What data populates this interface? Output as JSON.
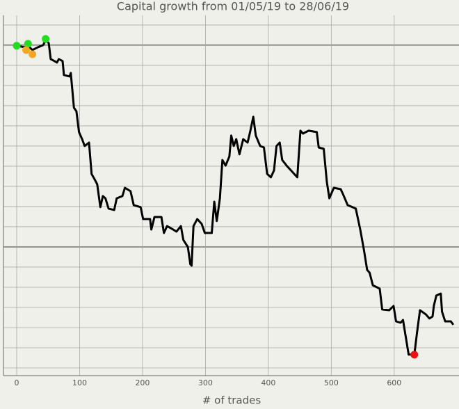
{
  "chart_data": {
    "type": "line",
    "title": "Capital growth from 01/05/19 to 28/06/19",
    "x_label": "# of trades",
    "x": [
      0,
      12,
      18,
      25,
      34,
      42,
      46,
      51,
      54,
      60,
      64,
      67,
      73,
      75,
      84,
      86,
      91,
      95,
      99,
      104,
      108,
      115,
      119,
      124,
      128,
      133,
      137,
      141,
      146,
      155,
      159,
      168,
      172,
      181,
      186,
      197,
      201,
      212,
      214,
      219,
      230,
      234,
      239,
      245,
      254,
      261,
      265,
      272,
      276,
      278,
      281,
      287,
      294,
      299,
      310,
      314,
      318,
      323,
      327,
      332,
      338,
      341,
      345,
      349,
      354,
      360,
      367,
      371,
      376,
      380,
      387,
      393,
      398,
      404,
      409,
      413,
      418,
      422,
      429,
      446,
      451,
      455,
      464,
      477,
      480,
      488,
      493,
      497,
      504,
      515,
      519,
      526,
      539,
      546,
      552,
      557,
      561,
      566,
      577,
      581,
      592,
      599,
      603,
      610,
      614,
      623,
      632,
      636,
      641,
      650,
      656,
      661,
      663,
      667,
      674,
      676,
      681,
      690,
      694
    ],
    "y": [
      9.97,
      9.9,
      9.97,
      9.76,
      9.9,
      10,
      10.24,
      10.1,
      9.31,
      9.21,
      9.14,
      9.31,
      9.21,
      8.52,
      8.45,
      8.62,
      6.9,
      6.72,
      5.69,
      5.34,
      5,
      5.17,
      3.62,
      3.34,
      3.1,
      1.97,
      2.52,
      2.41,
      1.9,
      1.83,
      2.41,
      2.52,
      2.93,
      2.76,
      2.07,
      1.97,
      1.38,
      1.38,
      0.86,
      1.48,
      1.48,
      0.69,
      1.03,
      0.93,
      0.76,
      1.03,
      0.34,
      0,
      -0.86,
      -0.93,
      1.03,
      1.38,
      1.14,
      0.69,
      0.69,
      2.24,
      1.28,
      2.41,
      4.31,
      4.03,
      4.48,
      5.52,
      5,
      5.34,
      4.59,
      5.34,
      5.17,
      5.69,
      6.45,
      5.52,
      5,
      4.93,
      3.62,
      3.45,
      3.79,
      5,
      5.17,
      4.31,
      4.03,
      3.45,
      5.76,
      5.62,
      5.76,
      5.69,
      4.93,
      4.86,
      3.21,
      2.41,
      2.93,
      2.86,
      2.59,
      2.07,
      1.9,
      0.86,
      -0.17,
      -1.14,
      -1.28,
      -1.9,
      -2.07,
      -3.1,
      -3.14,
      -2.93,
      -3.69,
      -3.76,
      -3.62,
      -5.34,
      -5.34,
      -4.31,
      -3.14,
      -3.34,
      -3.55,
      -3.45,
      -2.93,
      -2.41,
      -2.31,
      -3.21,
      -3.69,
      -3.69,
      -3.86
    ],
    "color": "#000000",
    "markers": {
      "x": [
        0,
        18,
        46,
        15,
        25,
        632
      ],
      "y": [
        9.97,
        10.07,
        10.31,
        9.76,
        9.55,
        -5.34
      ],
      "colors": [
        "#22dd22",
        "#22dd22",
        "#22dd22",
        "#f5a623",
        "#f5a623",
        "#ee1111"
      ]
    },
    "xlim": [
      -21,
      703
    ],
    "ylim": [
      -6.38,
      11.48
    ],
    "xticks": [
      0,
      100,
      200,
      300,
      400,
      500,
      600
    ],
    "ygrid": [
      -6,
      -5,
      -4,
      -3,
      -2,
      -1,
      0,
      1,
      2,
      3,
      4,
      5,
      6,
      7,
      8,
      9,
      10,
      11
    ],
    "ymajor": [
      0,
      10
    ],
    "grid": true
  }
}
